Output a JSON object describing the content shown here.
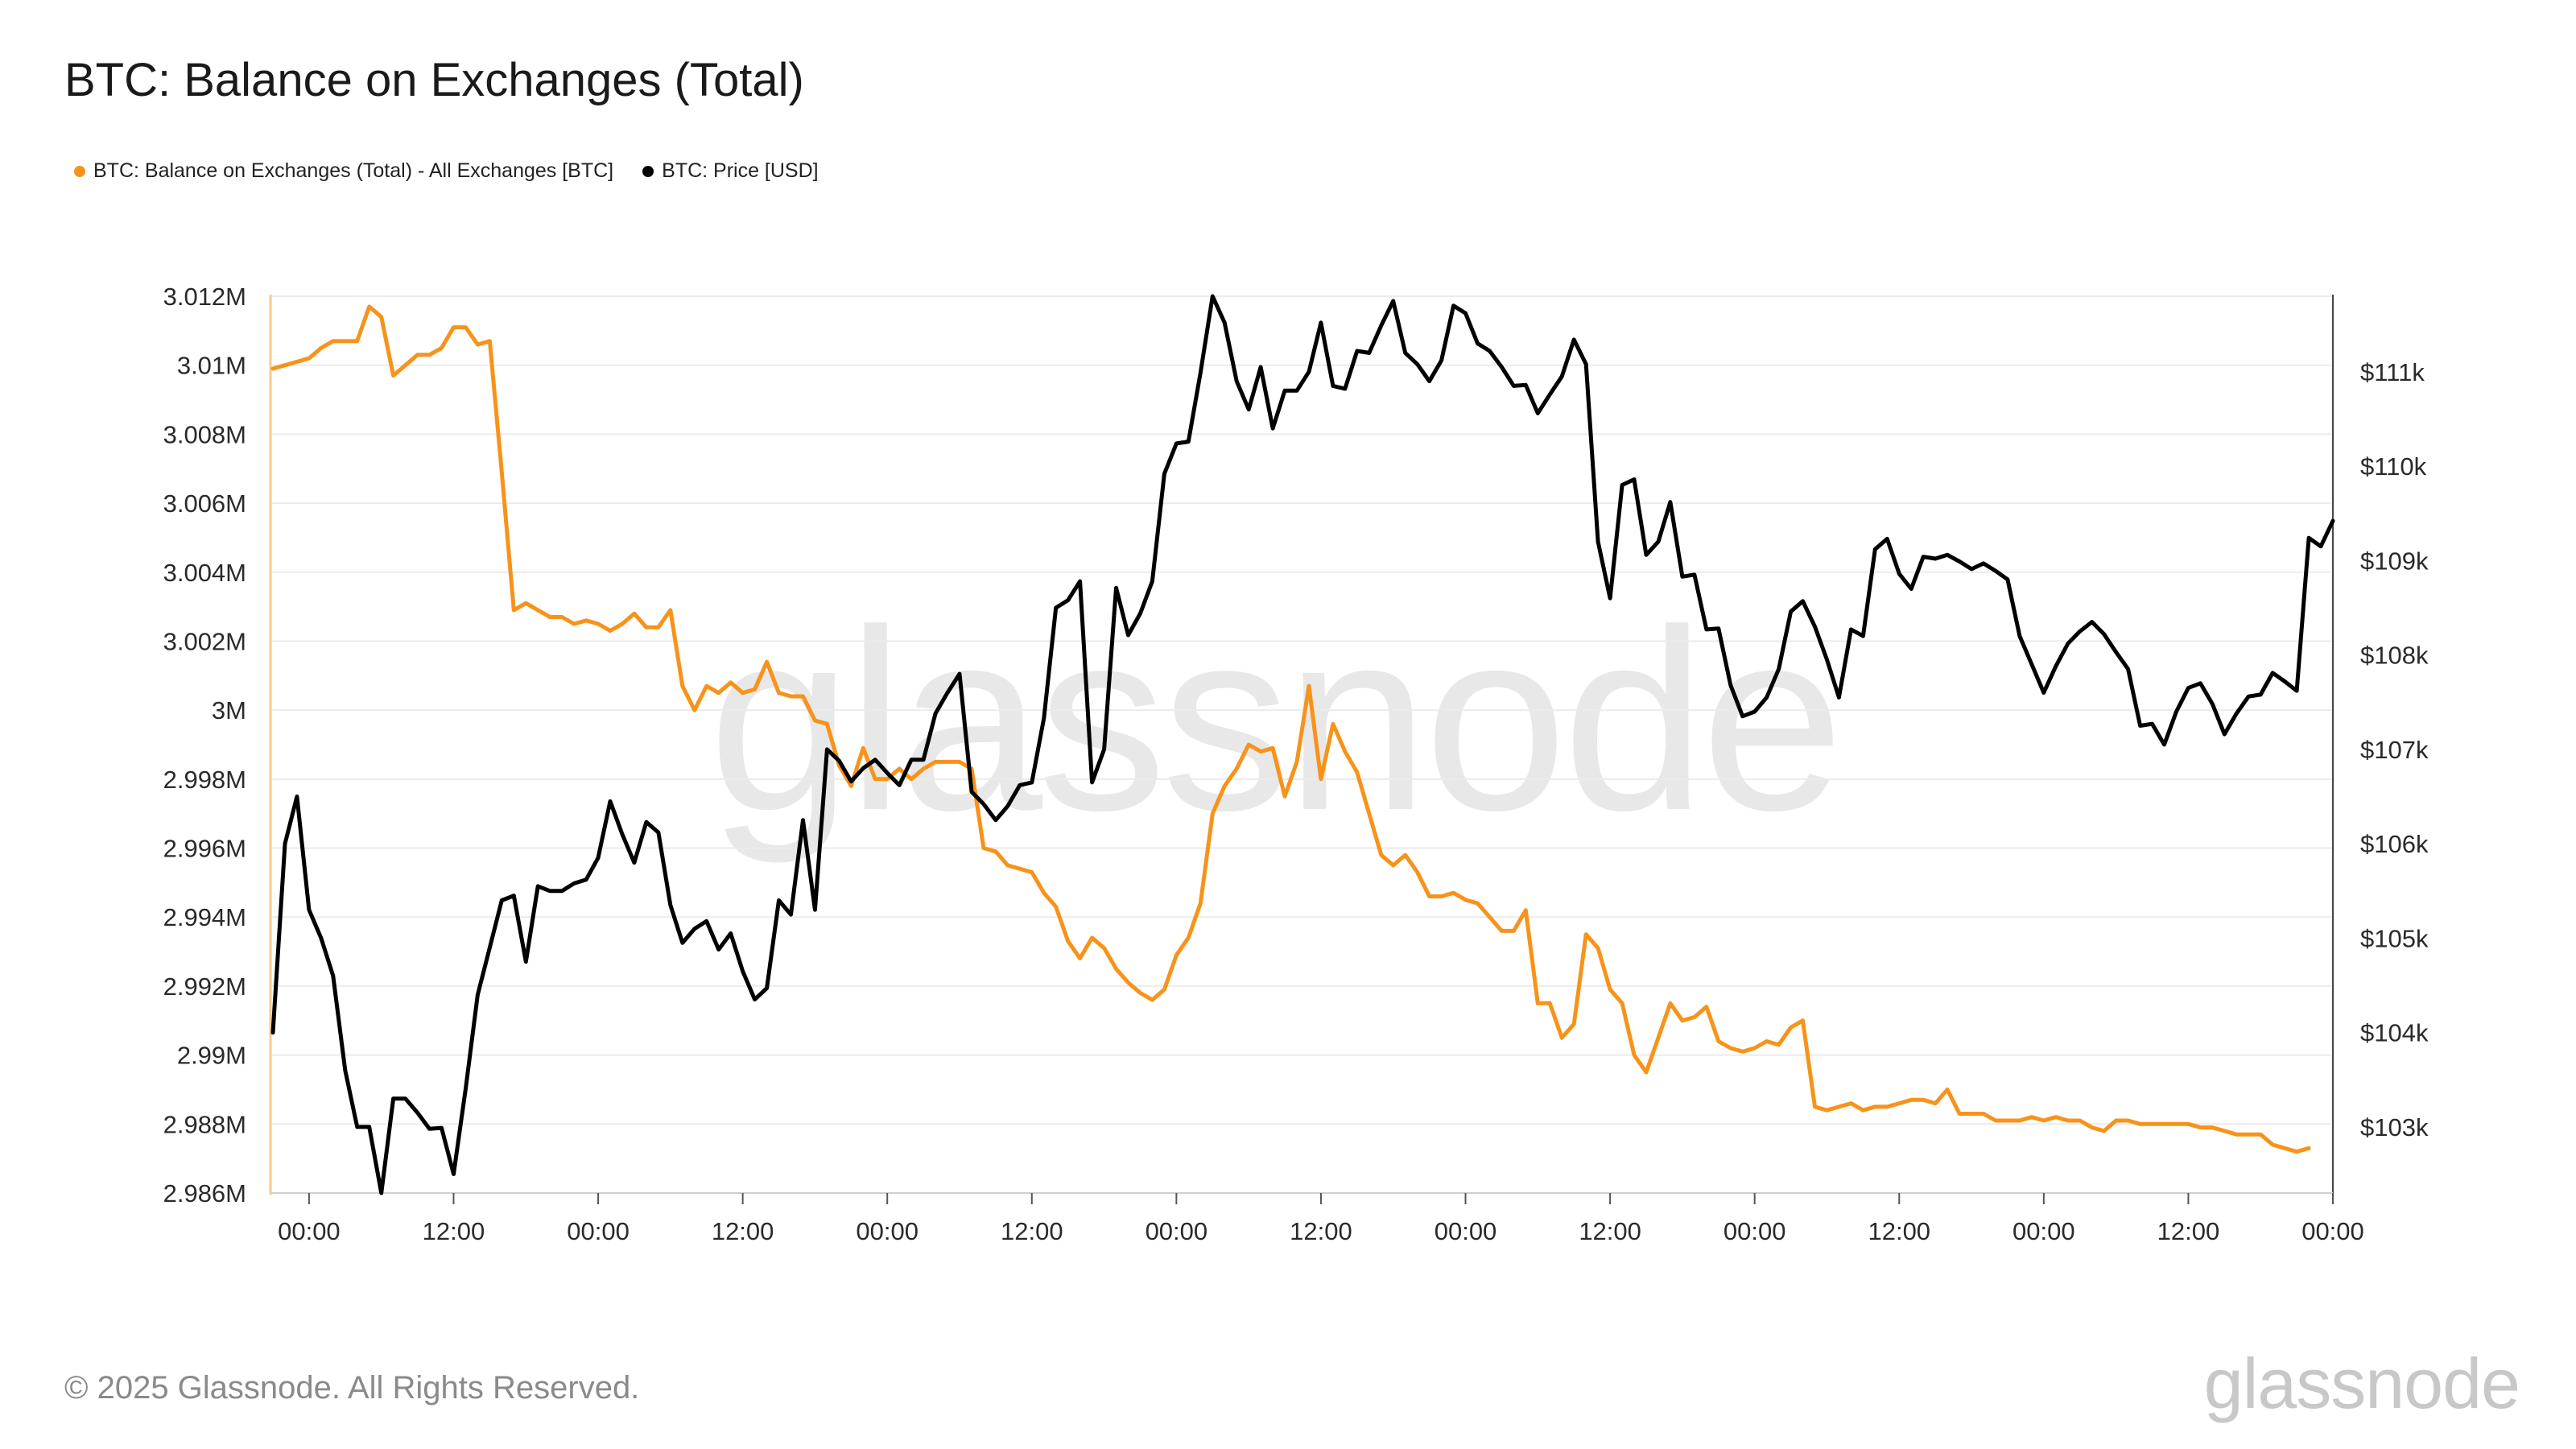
{
  "title": "BTC: Balance on Exchanges (Total)",
  "legend": [
    {
      "label": "BTC: Balance on Exchanges (Total) - All Exchanges [BTC]",
      "color": "#f7931a"
    },
    {
      "label": "BTC: Price [USD]",
      "color": "#000000"
    }
  ],
  "watermark": "glassnode",
  "footer": {
    "copyright": "© 2025 Glassnode. All Rights Reserved.",
    "brand": "glassnode"
  },
  "chart_data": {
    "type": "line",
    "title": "BTC: Balance on Exchanges (Total)",
    "x_unit": "hours from first 00:00 tick",
    "x_tick_labels": [
      "00:00",
      "12:00",
      "00:00",
      "12:00",
      "00:00",
      "12:00",
      "00:00",
      "12:00",
      "00:00",
      "12:00",
      "00:00",
      "12:00",
      "00:00",
      "12:00",
      "00:00"
    ],
    "x_tick_values": [
      0,
      12,
      24,
      36,
      48,
      60,
      72,
      84,
      96,
      108,
      120,
      132,
      144,
      156,
      168
    ],
    "xlim": [
      -3.2,
      168
    ],
    "grid": true,
    "legend_position": "top-left",
    "left_axis": {
      "ylim": [
        2.986,
        3.012
      ],
      "ticks": [
        2.986,
        2.988,
        2.99,
        2.992,
        2.994,
        2.996,
        2.998,
        3.0,
        3.002,
        3.004,
        3.006,
        3.008,
        3.01,
        3.012
      ],
      "tick_labels": [
        "2.986M",
        "2.988M",
        "2.99M",
        "2.992M",
        "2.994M",
        "2.996M",
        "2.998M",
        "3M",
        "3.002M",
        "3.004M",
        "3.006M",
        "3.008M",
        "3.01M",
        "3.012M"
      ]
    },
    "right_axis": {
      "ylim": [
        102300,
        111800
      ],
      "ticks": [
        103000,
        104000,
        105000,
        106000,
        107000,
        108000,
        109000,
        110000,
        111000
      ],
      "tick_labels": [
        "$103k",
        "$104k",
        "$105k",
        "$106k",
        "$107k",
        "$108k",
        "$109k",
        "$110k",
        "$111k"
      ]
    },
    "series": [
      {
        "name": "BTC: Balance on Exchanges (Total) - All Exchanges [BTC]",
        "axis": "left",
        "unit": "M BTC",
        "color": "#f7931a",
        "x_start": -3,
        "x_step": 1,
        "values": [
          3.0099,
          3.01,
          3.0101,
          3.0102,
          3.0105,
          3.0107,
          3.0107,
          3.0107,
          3.0117,
          3.0114,
          3.0097,
          3.01,
          3.0103,
          3.0103,
          3.0105,
          3.0111,
          3.0111,
          3.0106,
          3.0107,
          3.0069,
          3.0029,
          3.0031,
          3.0029,
          3.0027,
          3.0027,
          3.0025,
          3.0026,
          3.0025,
          3.0023,
          3.0025,
          3.0028,
          3.0024,
          3.0024,
          3.0029,
          3.0007,
          3.0,
          3.0007,
          3.0005,
          3.0008,
          3.0005,
          3.0006,
          3.0014,
          3.0005,
          3.0004,
          3.0004,
          2.9997,
          2.9996,
          2.9984,
          2.9978,
          2.9989,
          2.998,
          2.998,
          2.9983,
          2.998,
          2.9983,
          2.9985,
          2.9985,
          2.9985,
          2.9983,
          2.996,
          2.9959,
          2.9955,
          2.9954,
          2.9953,
          2.9947,
          2.9943,
          2.9933,
          2.9928,
          2.9934,
          2.9931,
          2.9925,
          2.9921,
          2.9918,
          2.9916,
          2.9919,
          2.9929,
          2.9934,
          2.9944,
          2.997,
          2.9978,
          2.9983,
          2.999,
          2.9988,
          2.9989,
          2.9975,
          2.9985,
          3.0007,
          2.998,
          2.9996,
          2.9988,
          2.9982,
          2.997,
          2.9958,
          2.9955,
          2.9958,
          2.9953,
          2.9946,
          2.9946,
          2.9947,
          2.9945,
          2.9944,
          2.994,
          2.9936,
          2.9936,
          2.9942,
          2.9915,
          2.9915,
          2.9905,
          2.9909,
          2.9935,
          2.9931,
          2.9919,
          2.9915,
          2.99,
          2.9895,
          2.9905,
          2.9915,
          2.991,
          2.9911,
          2.9914,
          2.9904,
          2.9902,
          2.9901,
          2.9902,
          2.9904,
          2.9903,
          2.9908,
          2.991,
          2.9885,
          2.9884,
          2.9885,
          2.9886,
          2.9884,
          2.9885,
          2.9885,
          2.9886,
          2.9887,
          2.9887,
          2.9886,
          2.989,
          2.9883,
          2.9883,
          2.9883,
          2.9881,
          2.9881,
          2.9881,
          2.9882,
          2.9881,
          2.9882,
          2.9881,
          2.9881,
          2.9879,
          2.9878,
          2.9881,
          2.9881,
          2.988,
          2.988,
          2.988,
          2.988,
          2.988,
          2.9879,
          2.9879,
          2.9878,
          2.9877,
          2.9877,
          2.9877,
          2.9874,
          2.9873,
          2.9872,
          2.9873
        ]
      },
      {
        "name": "BTC: Price [USD]",
        "axis": "right",
        "unit": "USD",
        "color": "#000000",
        "x_start": -3,
        "x_step": 1,
        "values": [
          104000,
          106000,
          106500,
          105300,
          105000,
          104600,
          103600,
          103000,
          103000,
          102300,
          103300,
          103300,
          103150,
          102980,
          102990,
          102500,
          103400,
          104400,
          104900,
          105400,
          105450,
          104750,
          105550,
          105500,
          105500,
          105580,
          105620,
          105850,
          106450,
          106100,
          105800,
          106230,
          106120,
          105350,
          104950,
          105100,
          105180,
          104880,
          105050,
          104650,
          104350,
          104470,
          105400,
          105250,
          106250,
          105300,
          107000,
          106880,
          106660,
          106800,
          106890,
          106750,
          106620,
          106890,
          106890,
          107380,
          107600,
          107800,
          106550,
          106420,
          106250,
          106400,
          106620,
          106650,
          107330,
          108500,
          108580,
          108780,
          106650,
          107000,
          108710,
          108210,
          108440,
          108780,
          109920,
          110240,
          110260,
          110990,
          111800,
          111520,
          110900,
          110600,
          111050,
          110400,
          110800,
          110800,
          111000,
          111520,
          110850,
          110820,
          111220,
          111200,
          111490,
          111750,
          111200,
          111080,
          110900,
          111120,
          111700,
          111620,
          111300,
          111220,
          111050,
          110850,
          110860,
          110560,
          110760,
          110950,
          111340,
          111080,
          109200,
          108600,
          109800,
          109860,
          109060,
          109200,
          109620,
          108830,
          108850,
          108270,
          108280,
          107680,
          107350,
          107400,
          107550,
          107850,
          108460,
          108570,
          108300,
          107950,
          107550,
          108270,
          108200,
          109120,
          109230,
          108860,
          108700,
          109040,
          109020,
          109060,
          108990,
          108910,
          108970,
          108890,
          108800,
          108200,
          107900,
          107600,
          107880,
          108120,
          108250,
          108350,
          108220,
          108030,
          107850,
          107250,
          107270,
          107050,
          107400,
          107650,
          107700,
          107480,
          107160,
          107380,
          107560,
          107580,
          107810,
          107720,
          107620,
          109240,
          109150,
          109420
        ]
      }
    ]
  }
}
